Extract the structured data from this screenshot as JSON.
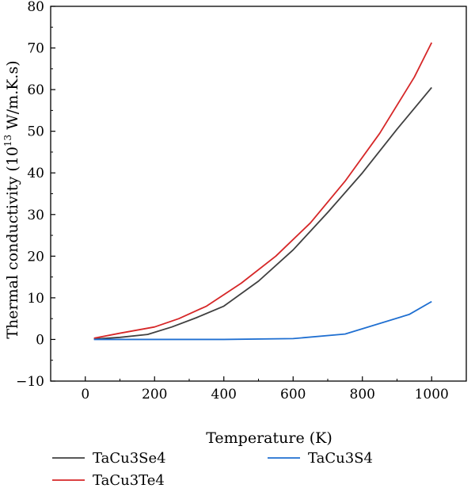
{
  "chart_data": {
    "type": "line",
    "title": "",
    "xlabel": "Temperature (K)",
    "ylabel_prefix": "Thermal conductivity (10",
    "ylabel_exp": "13",
    "ylabel_suffix": " W/m.K.s)",
    "xlim": [
      -100,
      1100
    ],
    "ylim": [
      -10,
      80
    ],
    "xticks": [
      0,
      200,
      400,
      600,
      800,
      1000
    ],
    "yticks": [
      -10,
      0,
      10,
      20,
      30,
      40,
      50,
      60,
      70,
      80
    ],
    "ytick_labels": [
      "−10",
      "0",
      "10",
      "20",
      "30",
      "40",
      "50",
      "60",
      "70",
      "80"
    ],
    "legend_position": "bottom",
    "grid": false,
    "series": [
      {
        "name": "TaCu3Se4",
        "color": "#404040",
        "x": [
          25,
          100,
          180,
          250,
          320,
          400,
          500,
          600,
          700,
          800,
          900,
          1000
        ],
        "y": [
          0.1,
          0.5,
          1.2,
          3.0,
          5.2,
          8.0,
          14.0,
          21.5,
          30.5,
          40.0,
          50.5,
          60.5
        ]
      },
      {
        "name": "TaCu3Te4",
        "color": "#d62728",
        "x": [
          25,
          100,
          200,
          270,
          350,
          450,
          550,
          650,
          750,
          850,
          950,
          1000
        ],
        "y": [
          0.3,
          1.5,
          3.0,
          5.0,
          8.0,
          13.5,
          20.0,
          28.0,
          38.0,
          49.5,
          63.0,
          71.3
        ]
      },
      {
        "name": "TaCu3S4",
        "color": "#1f6fd1",
        "x": [
          25,
          200,
          400,
          600,
          750,
          935,
          1000
        ],
        "y": [
          0.0,
          0.0,
          0.0,
          0.2,
          1.3,
          6.0,
          9.1
        ]
      }
    ]
  }
}
